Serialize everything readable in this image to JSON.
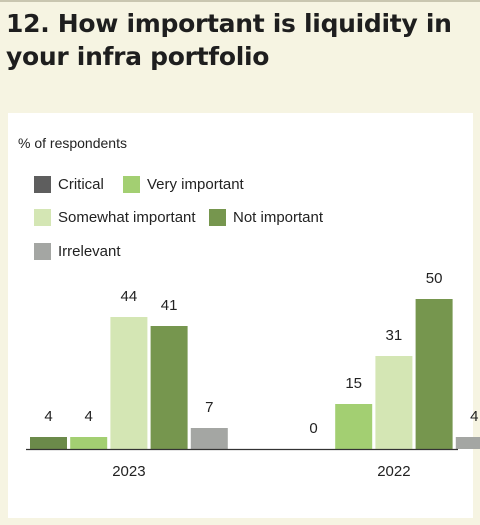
{
  "chart_data": {
    "type": "bar",
    "title": "12. How important is liquidity in your infra portfolio",
    "ylabel": "% of respondents",
    "xlabel": "",
    "categories": [
      "2023",
      "2022"
    ],
    "series": [
      {
        "name": "Critical",
        "color": "#6b8a4a",
        "values": [
          4,
          0
        ]
      },
      {
        "name": "Very important",
        "color": "#a3cf72",
        "values": [
          4,
          15
        ]
      },
      {
        "name": "Somewhat important",
        "color": "#d4e6b4",
        "values": [
          44,
          31
        ]
      },
      {
        "name": "Not important",
        "color": "#76964e",
        "values": [
          41,
          50
        ]
      },
      {
        "name": "Irrelevant",
        "color": "#a4a6a3",
        "values": [
          7,
          4
        ]
      }
    ],
    "legend": {
      "placement": "top-left",
      "swatch_colors": {
        "Critical": "#5e5e5e",
        "Very important": "#a3cf72",
        "Somewhat important": "#d4e6b4",
        "Not important": "#76964e",
        "Irrelevant": "#a4a6a3"
      }
    },
    "ylim": [
      0,
      60
    ],
    "grid": false
  }
}
